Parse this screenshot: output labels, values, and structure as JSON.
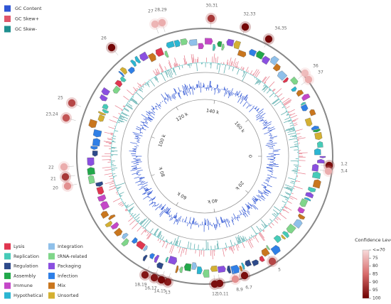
{
  "tracks_legend": [
    {
      "name": "GC Content",
      "color": "#2f55d4"
    },
    {
      "name": "GC Skew+",
      "color": "#e0566a"
    },
    {
      "name": "GC Skew-",
      "color": "#1f8f8f"
    }
  ],
  "categories_legend": [
    {
      "name": "Lysis",
      "color": "#e0364f"
    },
    {
      "name": "Replication",
      "color": "#46cbb8"
    },
    {
      "name": "Regulation",
      "color": "#2d4a8a"
    },
    {
      "name": "Assembly",
      "color": "#22a84a"
    },
    {
      "name": "Immune",
      "color": "#c447c8"
    },
    {
      "name": "Hypothetical",
      "color": "#2bb6d2"
    },
    {
      "name": "Integration",
      "color": "#8fc0ea"
    },
    {
      "name": "tRNA-related",
      "color": "#7fd68a"
    },
    {
      "name": "Packaging",
      "color": "#8a4fe0"
    },
    {
      "name": "Infection",
      "color": "#2f7fe6"
    },
    {
      "name": "Mix",
      "color": "#c9761e"
    },
    {
      "name": "Unsorted",
      "color": "#d4b032"
    }
  ],
  "scale": {
    "lim": [
      0,
      180000
    ],
    "ticks": [
      0,
      {
        "value": 20000,
        "label": "20 k"
      },
      {
        "value": 40000,
        "label": "40 k"
      },
      {
        "value": 60000,
        "label": "60 k"
      },
      {
        "value": 80000,
        "label": "80 k"
      },
      {
        "value": 100000,
        "label": "100 k"
      },
      {
        "value": 120000,
        "label": "120 k"
      },
      {
        "value": 140000,
        "label": "140 k"
      },
      {
        "value": 160000,
        "label": "160 k"
      }
    ]
  },
  "markers": [
    {
      "label": "1,2",
      "confidence": 98
    },
    {
      "label": "3,4",
      "confidence": 76
    },
    {
      "label": "5",
      "confidence": 90
    },
    {
      "label": "6,7",
      "confidence": 98
    },
    {
      "label": "8,9",
      "confidence": 80
    },
    {
      "label": "10,11",
      "confidence": 98
    },
    {
      "label": "12",
      "confidence": 98
    },
    {
      "label": "13",
      "confidence": 96
    },
    {
      "label": "14,15",
      "confidence": 99
    },
    {
      "label": "16,17",
      "confidence": 97
    },
    {
      "label": "18,19",
      "confidence": 97
    },
    {
      "label": "20",
      "confidence": 80
    },
    {
      "label": "21",
      "confidence": 92
    },
    {
      "label": "22",
      "confidence": 76
    },
    {
      "label": "23,24",
      "confidence": 88
    },
    {
      "label": "25",
      "confidence": 90
    },
    {
      "label": "26",
      "confidence": 99
    },
    {
      "label": "27",
      "confidence": 75
    },
    {
      "label": "28,29",
      "confidence": 76
    },
    {
      "label": "30,31",
      "confidence": 92
    },
    {
      "label": "32,33",
      "confidence": 99
    },
    {
      "label": "34,35",
      "confidence": 99
    },
    {
      "label": "36",
      "confidence": 74
    },
    {
      "label": "37",
      "confidence": 76
    }
  ],
  "colorbar": {
    "title": "Confidence Level",
    "lim": [
      70,
      100
    ],
    "ticks": [
      {
        "value": 70,
        "label": "<=70"
      },
      75,
      80,
      85,
      90,
      95,
      100
    ]
  }
}
